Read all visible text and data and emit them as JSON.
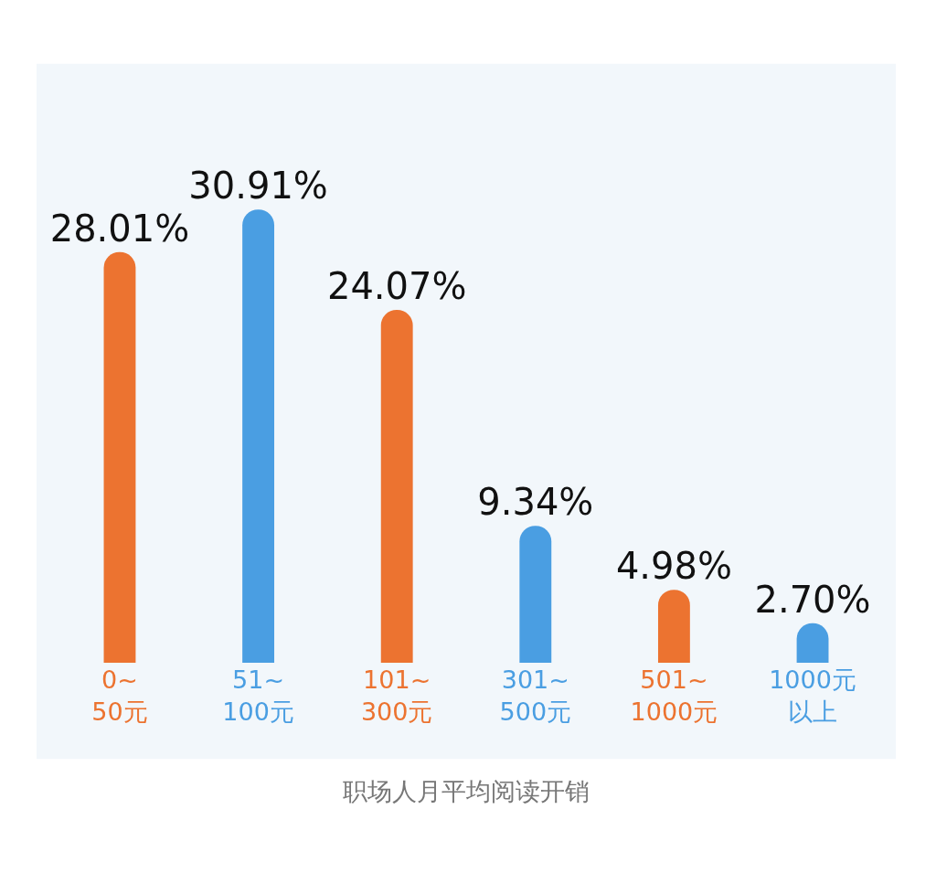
{
  "chart_data": {
    "type": "bar",
    "categories": [
      "0~\n50元",
      "51~\n100元",
      "101~\n300元",
      "301~\n500元",
      "501~\n1000元",
      "1000元以上"
    ],
    "values": [
      28.01,
      30.91,
      24.07,
      9.34,
      4.98,
      2.7
    ],
    "value_labels": [
      "28.01%",
      "30.91%",
      "24.07%",
      "9.34%",
      "4.98%",
      "2.70%"
    ],
    "colors": [
      "#ec7330",
      "#4a9ee2",
      "#ec7330",
      "#4a9ee2",
      "#ec7330",
      "#4a9ee2"
    ],
    "annotations": [
      "职场人月平均阅读开销"
    ],
    "grid": false,
    "legend": false
  }
}
